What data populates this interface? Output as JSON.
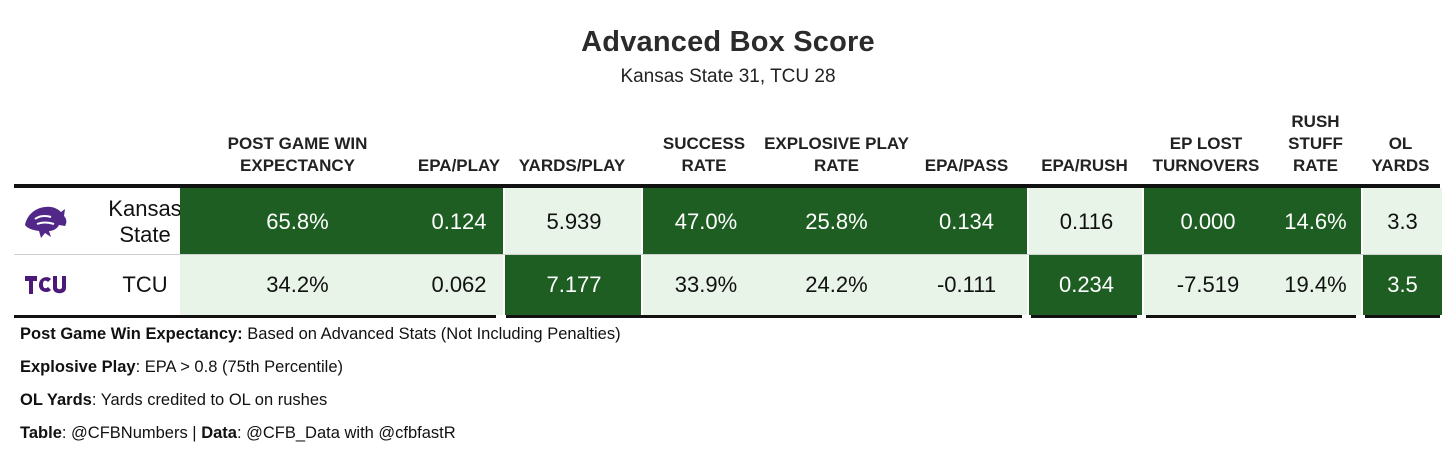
{
  "title": "Advanced Box Score",
  "subtitle": "Kansas State 31, TCU 28",
  "columns": [
    "POST GAME WIN EXPECTANCY",
    "EPA/PLAY",
    "YARDS/PLAY",
    "SUCCESS RATE",
    "EXPLOSIVE PLAY RATE",
    "EPA/PASS",
    "EPA/RUSH",
    "EP LOST TURNOVERS",
    "RUSH STUFF RATE",
    "OL YARDS"
  ],
  "colors": {
    "better": "#1e5e22",
    "worse": "#e8f4e8",
    "kstate": "#512888",
    "tcu": "#4d1979"
  },
  "teams": [
    {
      "name": "Kansas State",
      "logo_icon": "powercat-icon",
      "values": [
        "65.8%",
        "0.124",
        "5.939",
        "47.0%",
        "25.8%",
        "0.134",
        "0.116",
        "0.000",
        "14.6%",
        "3.3"
      ],
      "better": [
        true,
        true,
        false,
        true,
        true,
        true,
        false,
        true,
        true,
        false
      ]
    },
    {
      "name": "TCU",
      "logo_icon": "tcu-logo-icon",
      "values": [
        "34.2%",
        "0.062",
        "7.177",
        "33.9%",
        "24.2%",
        "-0.111",
        "0.234",
        "-7.519",
        "19.4%",
        "3.5"
      ],
      "better": [
        false,
        false,
        true,
        false,
        false,
        false,
        true,
        false,
        false,
        true
      ]
    }
  ],
  "notes": [
    {
      "label": "Post Game Win Expectancy:",
      "text": " Based on Advanced Stats (Not Including Penalties)"
    },
    {
      "label": "Explosive Play",
      "text": ": EPA > 0.8 (75th Percentile)"
    },
    {
      "label": "OL Yards",
      "text": ": Yards credited to OL on rushes"
    }
  ],
  "credit": {
    "table_label": "Table",
    "table_text": ": @CFBNumbers | ",
    "data_label": "Data",
    "data_text": ": @CFB_Data with @cfbfastR"
  }
}
